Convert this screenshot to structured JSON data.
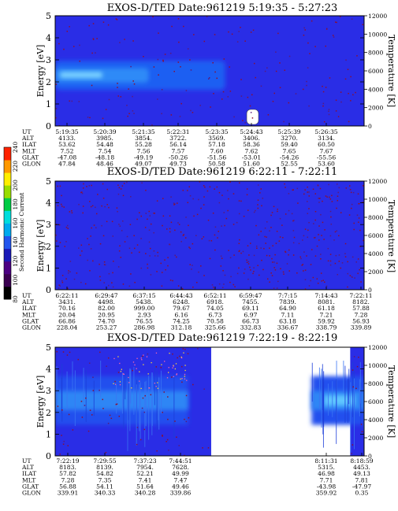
{
  "chart_data": [
    {
      "type": "heatmap",
      "title": "EXOS-D/TED   Date:961219  5:19:35 - 5:27:23",
      "ylabel": "Energy [eV]",
      "ylabel_right": "Temperature [K]",
      "ylim": [
        0,
        5
      ],
      "ylim_right": [
        0,
        12000
      ],
      "yticks": [
        "0",
        "1",
        "2",
        "3",
        "4",
        "5"
      ],
      "yticks_right": [
        "0",
        "2000",
        "4000",
        "6000",
        "8000",
        "10000",
        "12000"
      ],
      "band": {
        "energy_center_eV": 2.3,
        "energy_width_eV": 0.6,
        "coverage": [
          0.0,
          0.55
        ]
      },
      "gaps": [],
      "orbit_table": {
        "labels": [
          "UT",
          "ALT",
          "ILAT",
          "MLT",
          "GLAT",
          "GLON"
        ],
        "columns": [
          [
            "5:19:35",
            "4133.",
            "53.62",
            "7.52",
            "-47.08",
            "47.84"
          ],
          [
            "5:20:39",
            "3985.",
            "54.48",
            "7.54",
            "-48.18",
            "48.46"
          ],
          [
            "5:21:35",
            "3854.",
            "55.28",
            "7.56",
            "-49.19",
            "49.07"
          ],
          [
            "5:22:31",
            "3722.",
            "56.14",
            "7.57",
            "-50.26",
            "49.73"
          ],
          [
            "5:23:35",
            "3569.",
            "57.18",
            "7.60",
            "-51.56",
            "50.58"
          ],
          [
            "5:24:43",
            "3406.",
            "58.36",
            "7.62",
            "-53.01",
            "51.60"
          ],
          [
            "5:25:39",
            "3270.",
            "59.40",
            "7.65",
            "-54.26",
            "52.55"
          ],
          [
            "5:26:35",
            "3134.",
            "60.50",
            "7.67",
            "-55.56",
            "53.60"
          ]
        ]
      }
    },
    {
      "type": "heatmap",
      "title": "EXOS-D/TED   Date:961219  6:22:11 - 7:22:11",
      "ylabel": "Energy [eV]",
      "ylabel_right": "Temperature [K]",
      "ylim": [
        0,
        5
      ],
      "ylim_right": [
        0,
        12000
      ],
      "yticks": [
        "0",
        "1",
        "2",
        "3",
        "4",
        "5"
      ],
      "yticks_right": [
        "0",
        "2000",
        "4000",
        "6000",
        "8000",
        "10000",
        "12000"
      ],
      "band": null,
      "gaps": [],
      "orbit_table": {
        "labels": [
          "UT",
          "ALT",
          "ILAT",
          "MLT",
          "GLAT",
          "GLON"
        ],
        "columns": [
          [
            "6:22:11",
            "3431.",
            "70.16",
            "20.04",
            "66.86",
            "228.04"
          ],
          [
            "6:29:47",
            "4498.",
            "82.00",
            "20.95",
            "74.70",
            "253.27"
          ],
          [
            "6:37:15",
            "5438.",
            "999.00",
            "2.93",
            "76.55",
            "286.98"
          ],
          [
            "6:44:43",
            "6248.",
            "79.67",
            "6.16",
            "74.25",
            "312.18"
          ],
          [
            "6:52:11",
            "6918.",
            "74.05",
            "6.73",
            "70.58",
            "325.66"
          ],
          [
            "6:59:47",
            "7455.",
            "69.11",
            "6.97",
            "66.73",
            "332.83"
          ],
          [
            "7:7:15",
            "7839.",
            "64.90",
            "7.11",
            "63.18",
            "336.67"
          ],
          [
            "7:14:43",
            "8081.",
            "61.18",
            "7.21",
            "59.92",
            "338.79"
          ],
          [
            "7:22:11",
            "8182.",
            "57.88",
            "7.28",
            "56.93",
            "339.89"
          ]
        ]
      }
    },
    {
      "type": "heatmap",
      "title": "EXOS-D/TED   Date:961219  7:22:19 - 8:22:19",
      "ylabel": "Energy [eV]",
      "ylabel_right": "Temperature [K]",
      "ylim": [
        0,
        5
      ],
      "ylim_right": [
        0,
        12000
      ],
      "yticks": [
        "0",
        "1",
        "2",
        "3",
        "4",
        "5"
      ],
      "yticks_right": [
        "0",
        "2000",
        "4000",
        "6000",
        "8000",
        "10000",
        "12000"
      ],
      "band": {
        "energy_center_eV": 2.55,
        "energy_width_eV": 0.8
      },
      "gaps": [
        [
          0.505,
          0.955
        ]
      ],
      "orbit_table": {
        "labels": [
          "UT",
          "ALT",
          "ILAT",
          "MLT",
          "GLAT",
          "GLON"
        ],
        "columns": [
          [
            "7:22:19",
            "8183.",
            "57.82",
            "7.28",
            "56.88",
            "339.91"
          ],
          [
            "7:29:55",
            "8139.",
            "54.82",
            "7.35",
            "54.11",
            "340.33"
          ],
          [
            "7:37:23",
            "7954.",
            "52.21",
            "7.41",
            "51.64",
            "340.28"
          ],
          [
            "7:44:51",
            "7628.",
            "49.99",
            "7.47",
            "49.46",
            "339.86"
          ],
          [
            "8:11:31",
            "5315.",
            "46.98",
            "7.71",
            "-43.98",
            "359.92"
          ],
          [
            "8:18:59",
            "4453.",
            "49.13",
            "7.81",
            "-47.97",
            "0.35"
          ]
        ]
      }
    }
  ],
  "colorbar": {
    "label": "Second Harmonic Current",
    "ticks": [
      "80",
      "100",
      "120",
      "140",
      "160",
      "180",
      "200",
      "220",
      "240"
    ],
    "colors": [
      "#000000",
      "#3a0050",
      "#4b0082",
      "#1a1ab8",
      "#2255ee",
      "#00aaee",
      "#00dddd",
      "#00cc44",
      "#99dd00",
      "#ffee00",
      "#ff9900",
      "#ff2200"
    ]
  }
}
